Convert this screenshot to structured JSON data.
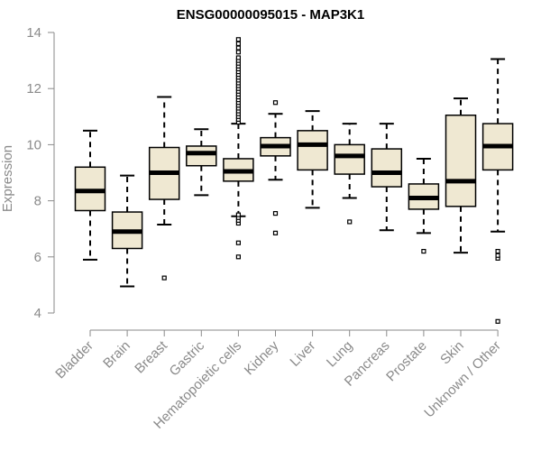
{
  "chart_data": {
    "type": "boxplot",
    "title": "ENSG00000095015 - MAP3K1",
    "xlabel": "",
    "ylabel": "Expression",
    "ylim": [
      3.5,
      14.2
    ],
    "yticks": [
      4,
      6,
      8,
      10,
      12,
      14
    ],
    "colors": {
      "box_fill": "#efe8d2",
      "median": "#000000",
      "axis": "#8a8a8a"
    },
    "categories": [
      "Bladder",
      "Brain",
      "Breast",
      "Gastric",
      "Hematopoietic cells",
      "Kidney",
      "Liver",
      "Lung",
      "Pancreas",
      "Prostate",
      "Skin",
      "Unknown / Other"
    ],
    "boxes": [
      {
        "category": "Bladder",
        "whisker_low": 5.9,
        "q1": 7.65,
        "median": 8.35,
        "q3": 9.2,
        "whisker_high": 10.5,
        "outliers": []
      },
      {
        "category": "Brain",
        "whisker_low": 4.95,
        "q1": 6.3,
        "median": 6.9,
        "q3": 7.6,
        "whisker_high": 8.9,
        "outliers": []
      },
      {
        "category": "Breast",
        "whisker_low": 7.15,
        "q1": 8.05,
        "median": 9.0,
        "q3": 9.9,
        "whisker_high": 11.7,
        "outliers": [
          5.25
        ]
      },
      {
        "category": "Gastric",
        "whisker_low": 8.2,
        "q1": 9.25,
        "median": 9.7,
        "q3": 9.95,
        "whisker_high": 10.55,
        "outliers": []
      },
      {
        "category": "Hematopoietic cells",
        "whisker_low": 7.45,
        "q1": 8.7,
        "median": 9.05,
        "q3": 9.5,
        "whisker_high": 10.75,
        "outliers": [
          6.0,
          6.5,
          7.2,
          7.3,
          7.4,
          7.5,
          10.8,
          10.9,
          11.0,
          11.1,
          11.2,
          11.3,
          11.4,
          11.5,
          11.6,
          11.7,
          11.8,
          11.9,
          12.0,
          12.1,
          12.2,
          12.3,
          12.4,
          12.5,
          12.6,
          12.7,
          12.8,
          12.9,
          13.0,
          13.1,
          13.3,
          13.45,
          13.6,
          13.75
        ]
      },
      {
        "category": "Kidney",
        "whisker_low": 8.75,
        "q1": 9.6,
        "median": 9.95,
        "q3": 10.25,
        "whisker_high": 11.1,
        "outliers": [
          6.85,
          7.55,
          11.5
        ]
      },
      {
        "category": "Liver",
        "whisker_low": 7.75,
        "q1": 9.1,
        "median": 10.0,
        "q3": 10.5,
        "whisker_high": 11.2,
        "outliers": []
      },
      {
        "category": "Lung",
        "whisker_low": 8.1,
        "q1": 8.95,
        "median": 9.6,
        "q3": 10.0,
        "whisker_high": 10.75,
        "outliers": [
          7.25
        ]
      },
      {
        "category": "Pancreas",
        "whisker_low": 6.95,
        "q1": 8.5,
        "median": 9.0,
        "q3": 9.85,
        "whisker_high": 10.75,
        "outliers": []
      },
      {
        "category": "Prostate",
        "whisker_low": 6.85,
        "q1": 7.7,
        "median": 8.1,
        "q3": 8.6,
        "whisker_high": 9.5,
        "outliers": [
          6.2
        ]
      },
      {
        "category": "Skin",
        "whisker_low": 6.15,
        "q1": 7.8,
        "median": 8.7,
        "q3": 11.05,
        "whisker_high": 11.65,
        "outliers": []
      },
      {
        "category": "Unknown / Other",
        "whisker_low": 6.9,
        "q1": 9.1,
        "median": 9.95,
        "q3": 10.75,
        "whisker_high": 13.05,
        "outliers": [
          3.7,
          5.95,
          6.05,
          6.2
        ]
      }
    ]
  }
}
